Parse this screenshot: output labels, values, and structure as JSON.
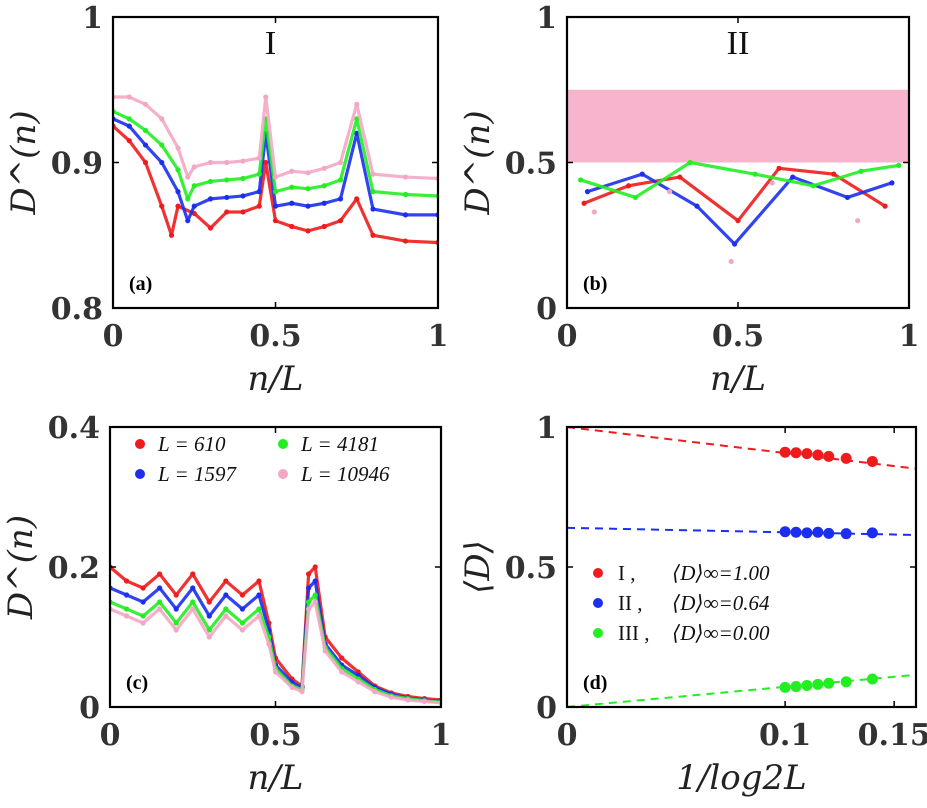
{
  "colors": {
    "red": "#ee1c1c",
    "blue": "#1c2fee",
    "green": "#22ee22",
    "pink": "#f4a7c4",
    "axis": "#000000"
  },
  "chart_data": [
    {
      "id": "a",
      "type": "scatter",
      "panel_label": "(a)",
      "regime_label": "I",
      "xlabel": "n/L",
      "ylabel": "D^(n)",
      "xlim": [
        0,
        1
      ],
      "ylim": [
        0.8,
        1
      ],
      "xticks": [
        "0",
        "0.5",
        "1"
      ],
      "yticks": [
        "0.8",
        "0.9",
        "1"
      ],
      "series": [
        {
          "name": "L = 610",
          "color": "#ee1c1c",
          "x": [
            0,
            0.05,
            0.1,
            0.15,
            0.18,
            0.2,
            0.25,
            0.3,
            0.35,
            0.4,
            0.45,
            0.47,
            0.5,
            0.55,
            0.6,
            0.65,
            0.7,
            0.75,
            0.8,
            0.9,
            1.0
          ],
          "y": [
            0.925,
            0.915,
            0.9,
            0.87,
            0.85,
            0.87,
            0.865,
            0.855,
            0.866,
            0.866,
            0.87,
            0.9,
            0.86,
            0.856,
            0.853,
            0.856,
            0.86,
            0.875,
            0.85,
            0.846,
            0.845
          ]
        },
        {
          "name": "L = 1597",
          "color": "#1c2fee",
          "x": [
            0,
            0.05,
            0.1,
            0.15,
            0.2,
            0.23,
            0.25,
            0.3,
            0.35,
            0.4,
            0.45,
            0.47,
            0.5,
            0.55,
            0.6,
            0.65,
            0.7,
            0.75,
            0.8,
            0.9,
            1.0
          ],
          "y": [
            0.93,
            0.925,
            0.912,
            0.9,
            0.88,
            0.86,
            0.87,
            0.875,
            0.876,
            0.877,
            0.88,
            0.92,
            0.87,
            0.872,
            0.87,
            0.872,
            0.875,
            0.92,
            0.868,
            0.864,
            0.864
          ]
        },
        {
          "name": "L = 4181",
          "color": "#22ee22",
          "x": [
            0,
            0.05,
            0.1,
            0.15,
            0.2,
            0.23,
            0.25,
            0.3,
            0.35,
            0.4,
            0.45,
            0.47,
            0.5,
            0.55,
            0.6,
            0.65,
            0.7,
            0.75,
            0.8,
            0.9,
            1.0
          ],
          "y": [
            0.935,
            0.93,
            0.922,
            0.912,
            0.895,
            0.875,
            0.884,
            0.887,
            0.888,
            0.889,
            0.892,
            0.93,
            0.88,
            0.883,
            0.882,
            0.884,
            0.888,
            0.93,
            0.88,
            0.878,
            0.877
          ]
        },
        {
          "name": "L = 10946",
          "color": "#f4a7c4",
          "x": [
            0,
            0.05,
            0.1,
            0.15,
            0.2,
            0.23,
            0.25,
            0.3,
            0.35,
            0.4,
            0.45,
            0.47,
            0.5,
            0.55,
            0.6,
            0.65,
            0.7,
            0.75,
            0.8,
            0.9,
            1.0
          ],
          "y": [
            0.945,
            0.945,
            0.94,
            0.93,
            0.91,
            0.89,
            0.897,
            0.9,
            0.9,
            0.901,
            0.903,
            0.945,
            0.89,
            0.894,
            0.893,
            0.896,
            0.9,
            0.94,
            0.892,
            0.89,
            0.889
          ]
        }
      ]
    },
    {
      "id": "b",
      "type": "scatter",
      "panel_label": "(b)",
      "regime_label": "II",
      "xlabel": "n/L",
      "ylabel": "D^(n)",
      "xlim": [
        0,
        1
      ],
      "ylim": [
        0,
        1
      ],
      "xticks": [
        "0",
        "0.5",
        "1"
      ],
      "yticks": [
        "0",
        "0.5",
        "1"
      ],
      "series": [
        {
          "name": "L = 610",
          "color": "#ee1c1c",
          "x": [
            0.05,
            0.18,
            0.33,
            0.5,
            0.62,
            0.78,
            0.93
          ],
          "y": [
            0.36,
            0.42,
            0.45,
            0.3,
            0.48,
            0.46,
            0.35
          ]
        },
        {
          "name": "L = 1597",
          "color": "#1c2fee",
          "x": [
            0.06,
            0.22,
            0.38,
            0.49,
            0.66,
            0.82,
            0.95
          ],
          "y": [
            0.4,
            0.46,
            0.35,
            0.22,
            0.45,
            0.38,
            0.43
          ]
        },
        {
          "name": "L = 4181",
          "color": "#22ee22",
          "x": [
            0.04,
            0.2,
            0.36,
            0.55,
            0.72,
            0.86,
            0.97
          ],
          "y": [
            0.44,
            0.38,
            0.5,
            0.46,
            0.42,
            0.47,
            0.49
          ]
        },
        {
          "name": "L = 10946",
          "color": "#f4a7c4",
          "band": [
            0.5,
            0.75
          ],
          "x": [
            0.08,
            0.3,
            0.48,
            0.6,
            0.85
          ],
          "y": [
            0.33,
            0.4,
            0.16,
            0.43,
            0.3
          ]
        }
      ]
    },
    {
      "id": "c",
      "type": "scatter",
      "panel_label": "(c)",
      "xlabel": "n/L",
      "ylabel": "D^(n)",
      "xlim": [
        0,
        1
      ],
      "ylim": [
        0,
        0.4
      ],
      "xticks": [
        "0",
        "0.5",
        "1"
      ],
      "yticks": [
        "0",
        "0.2",
        "0.4"
      ],
      "legend": [
        {
          "label": "L = 610",
          "color": "#ee1c1c"
        },
        {
          "label": "L = 4181",
          "color": "#22ee22"
        },
        {
          "label": "L = 1597",
          "color": "#1c2fee"
        },
        {
          "label": "L = 10946",
          "color": "#f4a7c4"
        }
      ],
      "series": [
        {
          "name": "L = 610",
          "color": "#ee1c1c",
          "x": [
            0,
            0.05,
            0.1,
            0.15,
            0.2,
            0.25,
            0.3,
            0.35,
            0.4,
            0.45,
            0.48,
            0.5,
            0.55,
            0.58,
            0.6,
            0.62,
            0.65,
            0.7,
            0.75,
            0.8,
            0.85,
            0.9,
            0.95,
            1.0
          ],
          "y": [
            0.2,
            0.18,
            0.17,
            0.19,
            0.16,
            0.19,
            0.15,
            0.18,
            0.16,
            0.18,
            0.12,
            0.07,
            0.04,
            0.03,
            0.19,
            0.2,
            0.1,
            0.07,
            0.05,
            0.03,
            0.02,
            0.015,
            0.012,
            0.01
          ]
        },
        {
          "name": "L = 1597",
          "color": "#1c2fee",
          "x": [
            0,
            0.05,
            0.1,
            0.15,
            0.2,
            0.25,
            0.3,
            0.35,
            0.4,
            0.45,
            0.48,
            0.5,
            0.55,
            0.58,
            0.6,
            0.62,
            0.65,
            0.7,
            0.75,
            0.8,
            0.85,
            0.9,
            0.95,
            1.0
          ],
          "y": [
            0.17,
            0.16,
            0.15,
            0.17,
            0.14,
            0.17,
            0.13,
            0.16,
            0.14,
            0.16,
            0.11,
            0.06,
            0.035,
            0.028,
            0.17,
            0.18,
            0.09,
            0.06,
            0.045,
            0.028,
            0.018,
            0.013,
            0.01,
            0.008
          ]
        },
        {
          "name": "L = 4181",
          "color": "#22ee22",
          "x": [
            0,
            0.05,
            0.1,
            0.15,
            0.2,
            0.25,
            0.3,
            0.35,
            0.4,
            0.45,
            0.48,
            0.5,
            0.55,
            0.58,
            0.6,
            0.62,
            0.65,
            0.7,
            0.75,
            0.8,
            0.85,
            0.9,
            0.95,
            1.0
          ],
          "y": [
            0.15,
            0.14,
            0.13,
            0.15,
            0.12,
            0.15,
            0.11,
            0.14,
            0.12,
            0.14,
            0.1,
            0.055,
            0.03,
            0.025,
            0.15,
            0.16,
            0.085,
            0.055,
            0.04,
            0.025,
            0.016,
            0.012,
            0.009,
            0.007
          ]
        },
        {
          "name": "L = 10946",
          "color": "#f4a7c4",
          "x": [
            0,
            0.05,
            0.1,
            0.15,
            0.2,
            0.25,
            0.3,
            0.35,
            0.4,
            0.45,
            0.48,
            0.5,
            0.55,
            0.58,
            0.6,
            0.62,
            0.65,
            0.7,
            0.75,
            0.8,
            0.85,
            0.9,
            0.95,
            1.0
          ],
          "y": [
            0.14,
            0.13,
            0.12,
            0.14,
            0.11,
            0.14,
            0.1,
            0.13,
            0.11,
            0.13,
            0.09,
            0.05,
            0.028,
            0.022,
            0.14,
            0.15,
            0.08,
            0.05,
            0.036,
            0.022,
            0.014,
            0.01,
            0.008,
            0.006
          ]
        }
      ]
    },
    {
      "id": "d",
      "type": "scatter",
      "panel_label": "(d)",
      "xlabel": "1/log2L",
      "ylabel": "⟨D⟩",
      "xlim": [
        0,
        0.16
      ],
      "ylim": [
        0,
        1
      ],
      "xticks": [
        "0",
        "0.1",
        "0.15"
      ],
      "yticks": [
        "0",
        "0.5",
        "1"
      ],
      "legend": [
        {
          "label": "I ,",
          "value_text": "⟨D⟩∞=1.00",
          "color": "#ee1c1c"
        },
        {
          "label": "II ,",
          "value_text": "⟨D⟩∞=0.64",
          "color": "#1c2fee"
        },
        {
          "label": "III ,",
          "value_text": "⟨D⟩∞=0.00",
          "color": "#22ee22"
        }
      ],
      "series": [
        {
          "name": "I",
          "color": "#ee1c1c",
          "x": [
            0.1,
            0.105,
            0.11,
            0.115,
            0.12,
            0.128,
            0.14
          ],
          "y": [
            0.91,
            0.908,
            0.905,
            0.9,
            0.895,
            0.888,
            0.877
          ],
          "fit": {
            "intercept": 1.0,
            "slope": -0.93
          }
        },
        {
          "name": "II",
          "color": "#1c2fee",
          "x": [
            0.1,
            0.105,
            0.11,
            0.115,
            0.12,
            0.128,
            0.14
          ],
          "y": [
            0.626,
            0.624,
            0.622,
            0.624,
            0.62,
            0.619,
            0.622
          ],
          "fit": {
            "intercept": 0.64,
            "slope": -0.16
          }
        },
        {
          "name": "III",
          "color": "#22ee22",
          "x": [
            0.1,
            0.105,
            0.11,
            0.115,
            0.12,
            0.128,
            0.14
          ],
          "y": [
            0.07,
            0.073,
            0.077,
            0.081,
            0.085,
            0.09,
            0.1
          ],
          "fit": {
            "intercept": 0.0,
            "slope": 0.72
          }
        }
      ]
    }
  ]
}
